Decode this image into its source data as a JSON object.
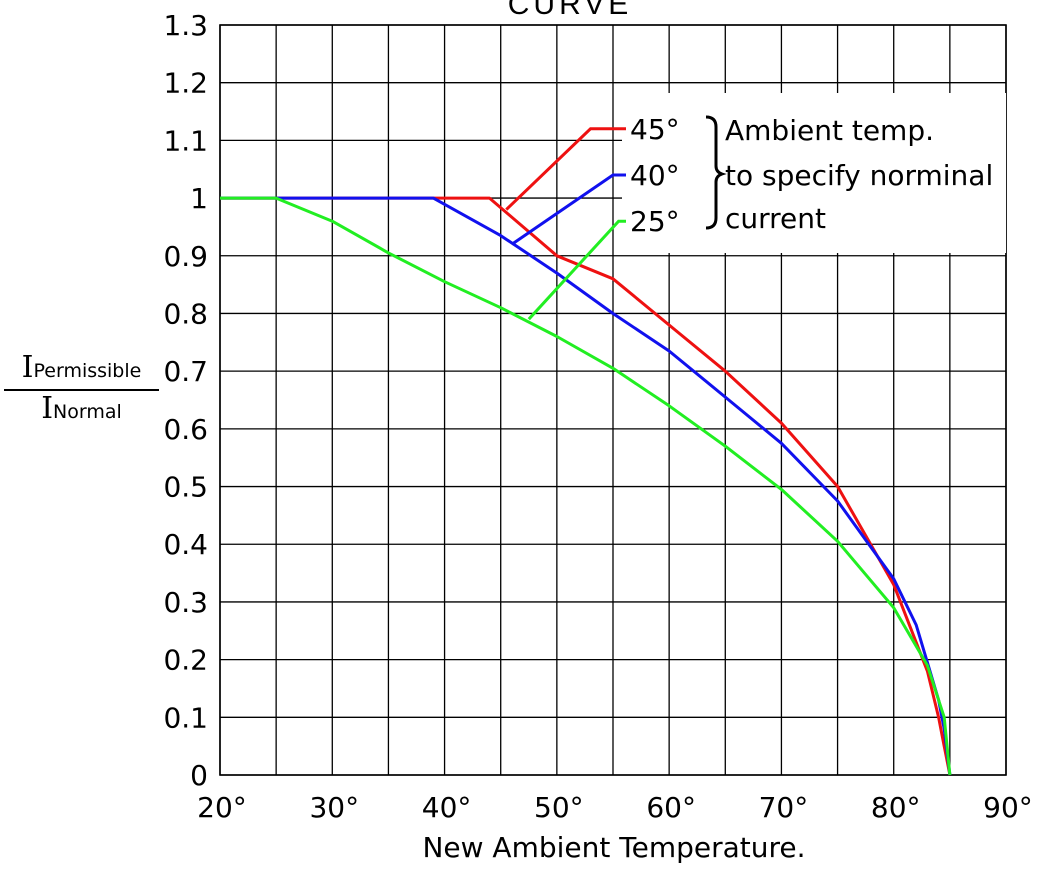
{
  "chart_data": {
    "type": "line",
    "title": "CURVE",
    "xlabel": "New Ambient Temperature.",
    "ylabel": {
      "numerator_symbol": "I",
      "numerator_sub": "Permissible",
      "denominator_symbol": "I",
      "denominator_sub": "Normal"
    },
    "xlim": [
      20,
      90
    ],
    "ylim": [
      0,
      1.3
    ],
    "grid": true,
    "x_ticks": [
      {
        "value": 20,
        "label": "20°"
      },
      {
        "value": 30,
        "label": "30°"
      },
      {
        "value": 40,
        "label": "40°"
      },
      {
        "value": 50,
        "label": "50°"
      },
      {
        "value": 60,
        "label": "60°"
      },
      {
        "value": 70,
        "label": "70°"
      },
      {
        "value": 80,
        "label": "80°"
      },
      {
        "value": 90,
        "label": "90°"
      }
    ],
    "y_ticks": [
      {
        "value": 0,
        "label": "0"
      },
      {
        "value": 0.1,
        "label": "0.1"
      },
      {
        "value": 0.2,
        "label": "0.2"
      },
      {
        "value": 0.3,
        "label": "0.3"
      },
      {
        "value": 0.4,
        "label": "0.4"
      },
      {
        "value": 0.5,
        "label": "0.5"
      },
      {
        "value": 0.6,
        "label": "0.6"
      },
      {
        "value": 0.7,
        "label": "0.7"
      },
      {
        "value": 0.8,
        "label": "0.8"
      },
      {
        "value": 0.9,
        "label": "0.9"
      },
      {
        "value": 1.0,
        "label": "1"
      },
      {
        "value": 1.1,
        "label": "1.1"
      },
      {
        "value": 1.2,
        "label": "1.2"
      },
      {
        "value": 1.3,
        "label": "1.3"
      }
    ],
    "series": [
      {
        "name": "45°",
        "color": "#ee1111",
        "points": [
          [
            20,
            1.0
          ],
          [
            44,
            1.0
          ],
          [
            50,
            0.9
          ],
          [
            55,
            0.86
          ],
          [
            60,
            0.78
          ],
          [
            65,
            0.7
          ],
          [
            70,
            0.61
          ],
          [
            75,
            0.5
          ],
          [
            80,
            0.33
          ],
          [
            83,
            0.18
          ],
          [
            84,
            0.1
          ],
          [
            84.5,
            0.05
          ],
          [
            85,
            0.0
          ]
        ]
      },
      {
        "name": "40°",
        "color": "#1111ee",
        "points": [
          [
            20,
            1.0
          ],
          [
            39,
            1.0
          ],
          [
            45,
            0.935
          ],
          [
            50,
            0.87
          ],
          [
            55,
            0.8
          ],
          [
            60,
            0.735
          ],
          [
            65,
            0.655
          ],
          [
            70,
            0.575
          ],
          [
            75,
            0.475
          ],
          [
            80,
            0.34
          ],
          [
            82,
            0.26
          ],
          [
            84,
            0.13
          ],
          [
            84.5,
            0.08
          ],
          [
            85,
            0.0
          ]
        ]
      },
      {
        "name": "25°",
        "color": "#22ee22",
        "points": [
          [
            20,
            1.0
          ],
          [
            25,
            1.0
          ],
          [
            30,
            0.96
          ],
          [
            35,
            0.905
          ],
          [
            40,
            0.855
          ],
          [
            45,
            0.81
          ],
          [
            50,
            0.76
          ],
          [
            55,
            0.705
          ],
          [
            60,
            0.64
          ],
          [
            65,
            0.57
          ],
          [
            70,
            0.495
          ],
          [
            75,
            0.405
          ],
          [
            80,
            0.29
          ],
          [
            83,
            0.19
          ],
          [
            84.5,
            0.1
          ],
          [
            85,
            0.0
          ]
        ]
      }
    ],
    "legend": {
      "entries": [
        {
          "label": "45°",
          "color": "#ee1111"
        },
        {
          "label": "40°",
          "color": "#1111ee"
        },
        {
          "label": "25°",
          "color": "#22ee22"
        }
      ],
      "note_lines": [
        "Ambient temp.",
        "to specify norminal",
        "current"
      ]
    }
  }
}
